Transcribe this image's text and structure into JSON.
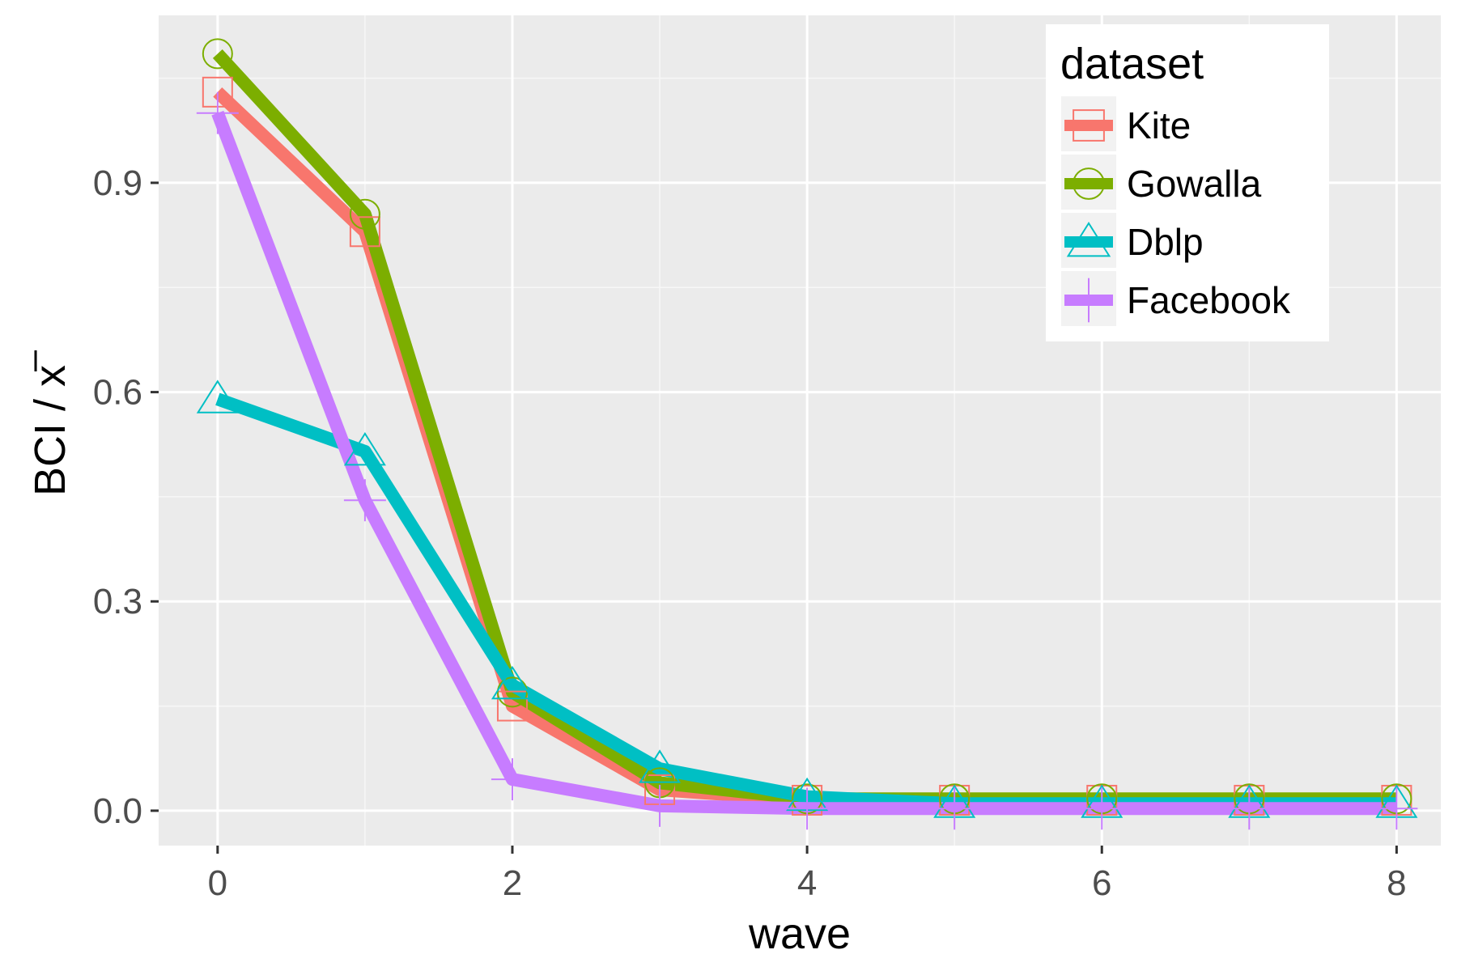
{
  "chart_data": {
    "type": "line",
    "xlabel": "wave",
    "ylabel": "BCI / x",
    "ylabel_overline_char": "x",
    "xlim": [
      -0.4,
      8.3
    ],
    "ylim": [
      -0.05,
      1.14
    ],
    "x_ticks": [
      0,
      2,
      4,
      6,
      8
    ],
    "x_tick_labels": [
      "0",
      "2",
      "4",
      "6",
      "8"
    ],
    "y_ticks": [
      0.0,
      0.3,
      0.6,
      0.9
    ],
    "y_tick_labels": [
      "0.0",
      "0.3",
      "0.6",
      "0.9"
    ],
    "grid": true,
    "legend": {
      "title": "dataset",
      "position": "top-right"
    },
    "x": [
      0,
      1,
      2,
      3,
      4,
      5,
      6,
      7,
      8
    ],
    "series": [
      {
        "name": "Kite",
        "color": "#F8766D",
        "marker": "square",
        "values": [
          1.03,
          0.83,
          0.15,
          0.03,
          0.015,
          0.015,
          0.015,
          0.015,
          0.015
        ]
      },
      {
        "name": "Gowalla",
        "color": "#7CAE00",
        "marker": "circle",
        "values": [
          1.085,
          0.855,
          0.17,
          0.04,
          0.017,
          0.017,
          0.017,
          0.017,
          0.017
        ]
      },
      {
        "name": "Dblp",
        "color": "#00BFC4",
        "marker": "triangle",
        "values": [
          0.59,
          0.515,
          0.18,
          0.06,
          0.02,
          0.01,
          0.01,
          0.01,
          0.01
        ]
      },
      {
        "name": "Facebook",
        "color": "#C77CFF",
        "marker": "plus",
        "values": [
          1.0,
          0.445,
          0.045,
          0.007,
          0.003,
          0.003,
          0.003,
          0.003,
          0.003
        ]
      }
    ]
  }
}
